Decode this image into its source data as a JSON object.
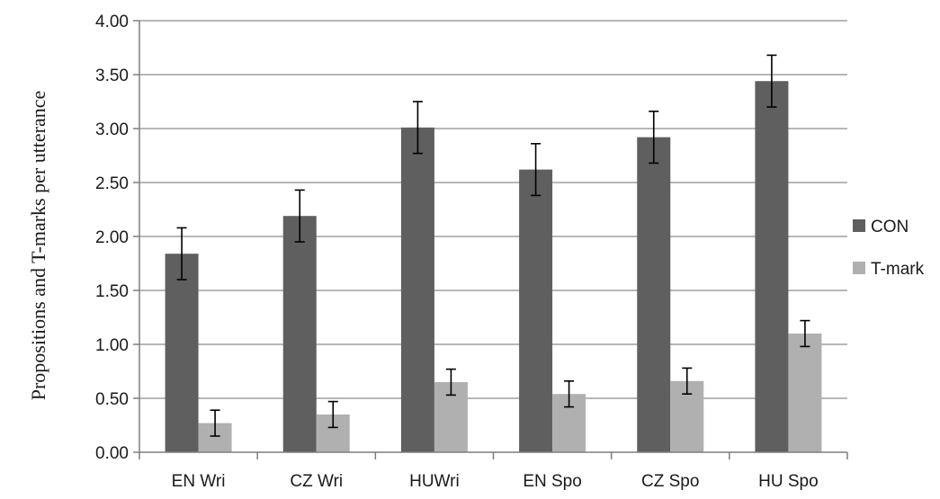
{
  "chart_data": {
    "type": "bar",
    "title": "",
    "xlabel": "",
    "ylabel": "Propositions and T-marks per utterance",
    "ylim": [
      0,
      4
    ],
    "ytick_step": 0.5,
    "ytick_labels": [
      "0.00",
      "0.50",
      "1.00",
      "1.50",
      "2.00",
      "2.50",
      "3.00",
      "3.50",
      "4.00"
    ],
    "grid": true,
    "legend_position": "right",
    "categories": [
      "EN Wri",
      "CZ Wri",
      "HUWri",
      "EN Spo",
      "CZ Spo",
      "HU Spo"
    ],
    "series": [
      {
        "name": "CON",
        "color": "#5f5f5f",
        "values": [
          1.84,
          2.19,
          3.01,
          2.62,
          2.92,
          3.44
        ],
        "error": [
          0.24,
          0.24,
          0.24,
          0.24,
          0.24,
          0.24
        ]
      },
      {
        "name": "T-mark",
        "color": "#b0b0b0",
        "values": [
          0.27,
          0.35,
          0.65,
          0.54,
          0.66,
          1.1
        ],
        "error": [
          0.12,
          0.12,
          0.12,
          0.12,
          0.12,
          0.12
        ]
      }
    ]
  }
}
